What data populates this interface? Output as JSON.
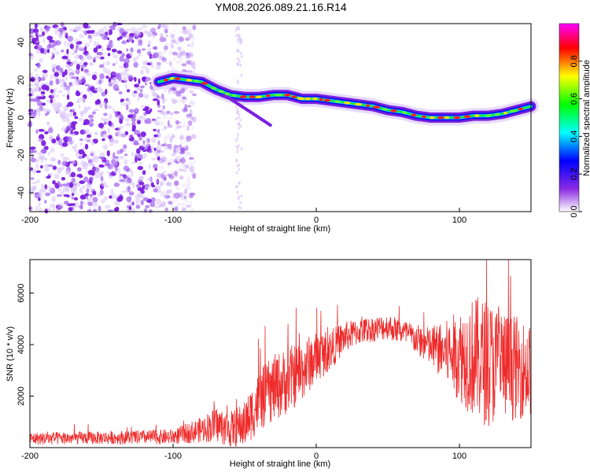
{
  "title": "YM08.2026.089.21.16.R14",
  "chart_data": [
    {
      "type": "heatmap",
      "name": "spectrogram",
      "xlabel": "Height of straight line (km)",
      "ylabel": "Frequency (Hz)",
      "xlim": [
        -200,
        150
      ],
      "ylim": [
        -50,
        50
      ],
      "xticks": [
        -200,
        -100,
        0,
        100
      ],
      "yticks": [
        40,
        20,
        0,
        -20,
        -40
      ],
      "xtick_labels": [
        "-200",
        "-100",
        "0",
        "100"
      ],
      "ytick_labels": [
        "40",
        "20",
        "0",
        "-20",
        "-40"
      ],
      "colorbar": {
        "label": "Normalized spectral amplitude",
        "range": [
          0,
          1
        ],
        "ticks": [
          0.0,
          0.2,
          0.4,
          0.6,
          0.8
        ],
        "tick_labels": [
          "0.0",
          "0.2",
          "0.4",
          "0.6",
          "0.8"
        ],
        "colors": [
          "#ffffff",
          "#8a2be2",
          "#0000ff",
          "#00ffff",
          "#00ff00",
          "#ffff00",
          "#ff0000",
          "#ff00ff"
        ]
      },
      "ridge": {
        "x": [
          -110,
          -100,
          -90,
          -80,
          -70,
          -60,
          -50,
          -40,
          -30,
          -20,
          -10,
          0,
          10,
          20,
          30,
          40,
          50,
          60,
          70,
          80,
          90,
          100,
          110,
          120,
          130,
          140,
          150
        ],
        "y": [
          19,
          21,
          20,
          19,
          15,
          12,
          11,
          11,
          12,
          12,
          10,
          10,
          9,
          8,
          7,
          6,
          4,
          3,
          1,
          0,
          0,
          0,
          1,
          1,
          2,
          4,
          6
        ]
      },
      "noise_region": [
        -200,
        -90
      ]
    },
    {
      "type": "line",
      "name": "snr",
      "xlabel": "Height of straight line (km)",
      "ylabel": "SNR (10 * v/v)",
      "xlim": [
        -200,
        150
      ],
      "ylim": [
        0,
        7300
      ],
      "xticks": [
        -200,
        -100,
        0,
        100
      ],
      "yticks": [
        2000,
        4000,
        6000
      ],
      "xtick_labels": [
        "-200",
        "-100",
        "0",
        "100"
      ],
      "ytick_labels": [
        "2000",
        "4000",
        "6000"
      ],
      "color": "#ee2b2b",
      "envelope": {
        "x": [
          -200,
          -150,
          -100,
          -80,
          -70,
          -60,
          -50,
          -40,
          -30,
          -20,
          -10,
          0,
          10,
          20,
          30,
          40,
          50,
          60,
          70,
          80,
          90,
          100,
          110,
          120,
          130,
          140,
          150
        ],
        "mean": [
          350,
          380,
          420,
          700,
          900,
          700,
          900,
          1800,
          2300,
          2600,
          3000,
          3500,
          3800,
          4300,
          4500,
          4600,
          4700,
          4500,
          4200,
          3900,
          3700,
          3600,
          3500,
          3300,
          3200,
          3100,
          3000
        ],
        "spread": [
          250,
          250,
          300,
          500,
          700,
          700,
          900,
          1200,
          1300,
          1300,
          1200,
          1000,
          800,
          600,
          500,
          500,
          500,
          500,
          600,
          800,
          1200,
          1800,
          2400,
          2500,
          2200,
          2000,
          1800
        ]
      }
    }
  ]
}
